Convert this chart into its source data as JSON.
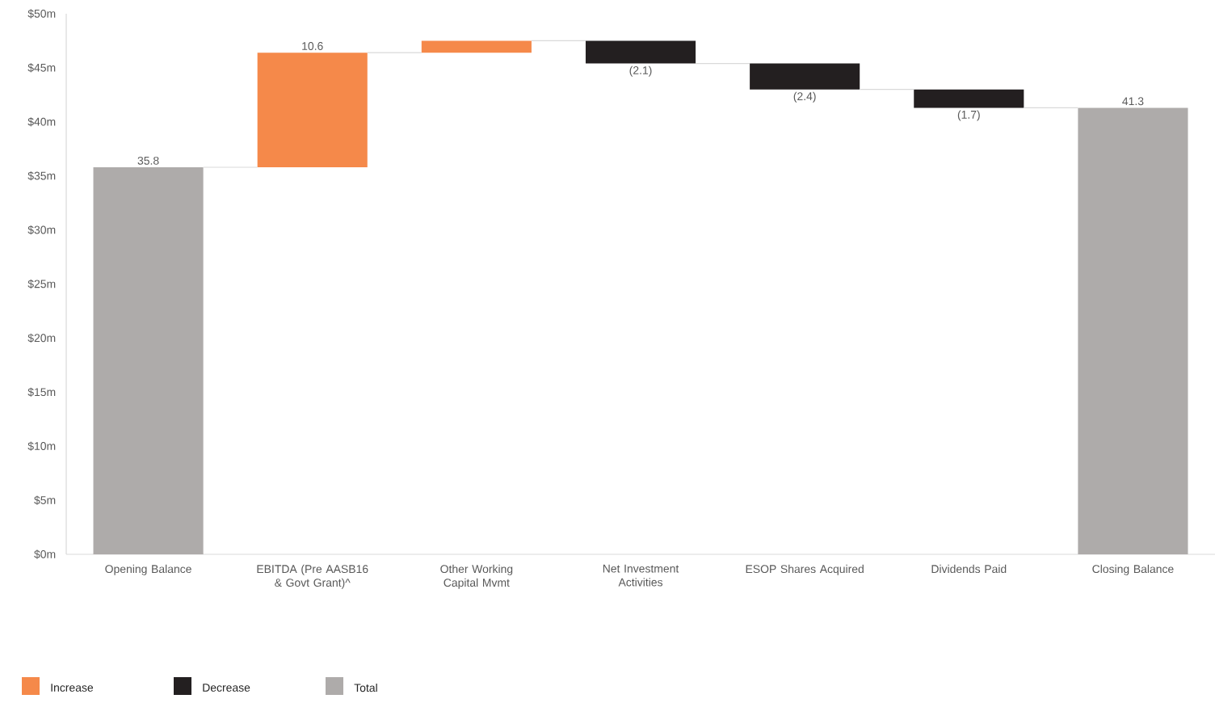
{
  "chart_data": {
    "type": "bar",
    "categories": [
      "Opening Balance",
      "EBITDA (Pre AASB16 & Govt Grant)^",
      "Other Working Capital Mvmt",
      "Net Investment Activities",
      "ESOP Shares Acquired",
      "Dividends Paid",
      "Closing Balance"
    ],
    "series": [
      {
        "name": "Increase",
        "color": "#f5894a",
        "base": [
          null,
          35.8,
          46.4,
          null,
          null,
          null,
          null
        ],
        "values": [
          null,
          10.6,
          1.1,
          null,
          null,
          null,
          null
        ],
        "value_labels": [
          null,
          "10.6",
          null,
          null,
          null,
          null,
          null
        ]
      },
      {
        "name": "Decrease",
        "color": "#231f20",
        "base": [
          null,
          null,
          null,
          47.5,
          45.4,
          43.0,
          null
        ],
        "values": [
          null,
          null,
          null,
          -2.1,
          -2.4,
          -1.7,
          null
        ],
        "value_labels": [
          null,
          null,
          null,
          "(2.1)",
          "(2.4)",
          "(1.7)",
          null
        ]
      },
      {
        "name": "Total",
        "color": "#aeabaa",
        "values": [
          35.8,
          null,
          null,
          null,
          null,
          null,
          41.3
        ],
        "value_labels": [
          "35.8",
          null,
          null,
          null,
          null,
          null,
          "41.3"
        ]
      }
    ],
    "ylim": [
      0,
      50
    ],
    "yticks": [
      {
        "value": 0,
        "label": "$0m"
      },
      {
        "value": 5,
        "label": "$5m"
      },
      {
        "value": 10,
        "label": "$10m"
      },
      {
        "value": 15,
        "label": "$15m"
      },
      {
        "value": 20,
        "label": "$20m"
      },
      {
        "value": 25,
        "label": "$25m"
      },
      {
        "value": 30,
        "label": "$30m"
      },
      {
        "value": 35,
        "label": "$35m"
      },
      {
        "value": 40,
        "label": "$40m"
      },
      {
        "value": 45,
        "label": "$45m"
      },
      {
        "value": 50,
        "label": "$50m"
      }
    ],
    "grid": false,
    "legend": "bottom left"
  }
}
